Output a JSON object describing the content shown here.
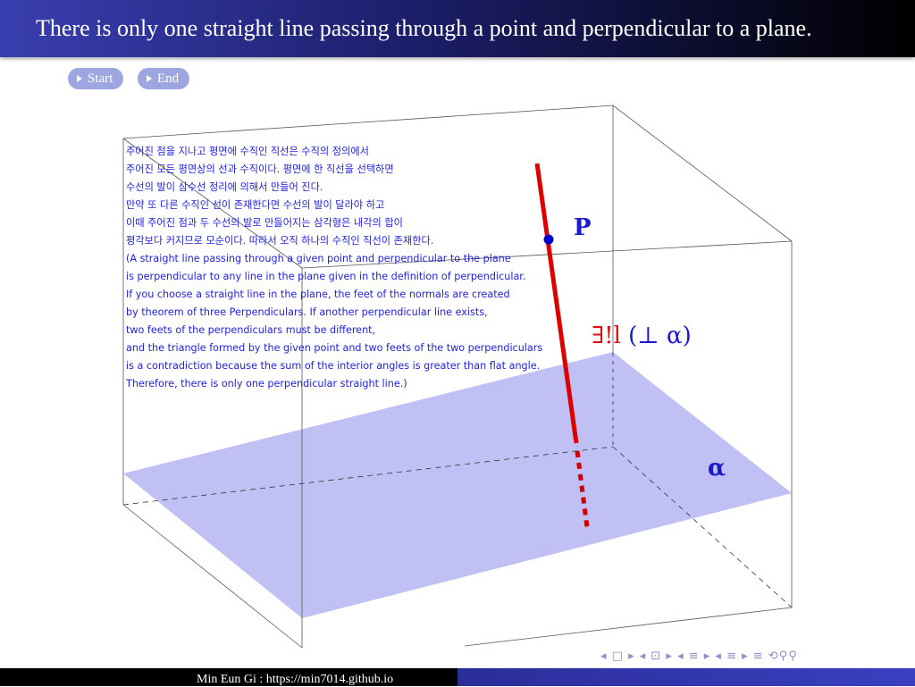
{
  "header": {
    "title": "There is only one straight line passing through a point and perpendicular to a plane."
  },
  "controls": {
    "start_label": "Start",
    "end_label": "End"
  },
  "description": {
    "lines": [
      "주어진 점을 지나고 평면에 수직인 직선은 수직의 정의에서",
      "주어진 모든 평면상의 선과 수직이다. 평면에 한 직선을 선택하면",
      "수선의 발이 삼수선 정리에 의해서 만들어 진다.",
      "만약 또 다른 수직인 선이 존재한다면 수선의 발이 달라야 하고",
      "이때 주어진 점과 두 수선의 발로 만들어지는 삼각형은 내각의 합이",
      "평각보다 커지므로 모순이다. 따라서 오직 하나의 수직인 직선이 존재한다.",
      "(A straight line passing through a given point and perpendicular to the plane",
      "is perpendicular to any line in the plane given in the definition of perpendicular.",
      "If you choose a straight line in the plane, the feet of the normals are created",
      "by theorem of three Perpendiculars. If another perpendicular line exists,",
      "two feets of the perpendiculars must be different,",
      "and the triangle formed by the given point and two feets of the two perpendiculars",
      "is a contradiction because the sum of the interior angles is greater than flat angle.",
      "Therefore, there is only one perpendicular straight line.)"
    ]
  },
  "diagram": {
    "point_label": "P",
    "line_label_exists": "∃!",
    "line_label_var": "l",
    "line_label_rest": " (⊥ α)",
    "plane_label": "α",
    "colors": {
      "plane": "#c0c0f4",
      "line": "#dd0000",
      "point": "#0000cc",
      "label": "#1a1acc"
    }
  },
  "navigation": {
    "symbols": "◂ □ ▸ ◂ ⊡ ▸ ◂ ≡ ▸ ◂ ≡ ▸   ≡   ⟲⚲⚲"
  },
  "footer": {
    "text": "Min Eun Gi : https://min7014.github.io"
  }
}
